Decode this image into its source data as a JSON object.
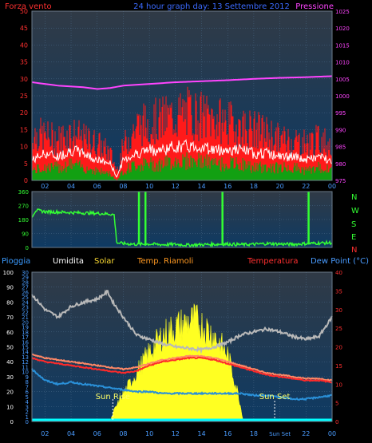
{
  "colors": {
    "background": "#000000",
    "plot_top": "#303a46",
    "plot_bottom": "#0e3a63",
    "grid": "#4a6a8a",
    "wind_gust": "#ff1a1a",
    "wind_avg": "#ffffff",
    "wind_min": "#12a012",
    "pressure": "#ff44ff",
    "direction": "#33ff33",
    "humidity": "#b8b8b8",
    "solar": "#ffff22",
    "temp": "#ff2a2a",
    "temp_max": "#ff8866",
    "dewpoint": "#2a90d8",
    "rain": "#00ffff",
    "title_blue": "#3b6bff",
    "axis_blue": "#4a9cff",
    "axis_red": "#ff3030",
    "axis_yellow": "#ffdd33",
    "axis_orange": "#ff9922",
    "axis_white": "#ffffff"
  },
  "header": {
    "wind_label": "Forza vento",
    "title": "24 hour graph day: 13 Settembre 2012",
    "pressure_label": "Pressione"
  },
  "bottom_legend": {
    "rain": "Pioggia",
    "humidity": "Umidita",
    "solar": "Solar",
    "temp_riamoli": "Temp. Riamoli",
    "temperature": "Temperatura",
    "dewpoint": "Dew Point (°C)"
  },
  "annotations": {
    "sunrise": "Sun Rise",
    "sunset": "Sun Set"
  },
  "compass": [
    "N",
    "W",
    "S",
    "E",
    "N"
  ],
  "chart_data": [
    {
      "type": "line",
      "name": "wind-pressure",
      "xlim": [
        1,
        24
      ],
      "x_ticks": [
        "02",
        "04",
        "06",
        "08",
        "10",
        "12",
        "14",
        "16",
        "18",
        "20",
        "22",
        "00"
      ],
      "y_left_ticks": [
        0,
        5,
        10,
        15,
        20,
        25,
        30,
        35,
        40,
        45,
        50
      ],
      "y_left_lim": [
        0,
        50
      ],
      "y_right_ticks": [
        975,
        980,
        985,
        990,
        995,
        1000,
        1005,
        1010,
        1015,
        1020,
        1025
      ],
      "y_right_lim": [
        975,
        1025
      ],
      "grid": true,
      "series": [
        {
          "name": "Pressione",
          "axis": "right",
          "x": [
            1,
            3,
            5,
            6,
            7,
            8,
            10,
            12,
            14,
            16,
            18,
            20,
            22,
            24
          ],
          "values": [
            1004,
            1003,
            1002.5,
            1002,
            1002.3,
            1003,
            1003.5,
            1004,
            1004.3,
            1004.6,
            1005,
            1005.3,
            1005.5,
            1005.8
          ]
        },
        {
          "axis": "left",
          "role": "gust",
          "x": [
            1,
            2,
            3,
            4,
            5,
            6,
            7,
            7.5,
            8,
            9,
            10,
            11,
            12,
            13,
            14,
            15,
            16,
            17,
            18,
            19,
            20,
            21,
            22,
            23,
            24
          ],
          "values": [
            14,
            13,
            12,
            14,
            12,
            11,
            8,
            3,
            10,
            16,
            17,
            18,
            19,
            20,
            19,
            18,
            17,
            16,
            15,
            14,
            12,
            12,
            11,
            12,
            11
          ]
        },
        {
          "axis": "left",
          "role": "average",
          "x": [
            1,
            2,
            3,
            4,
            5,
            6,
            7,
            7.5,
            8,
            9,
            10,
            11,
            12,
            13,
            14,
            15,
            16,
            17,
            18,
            19,
            20,
            21,
            22,
            23,
            24
          ],
          "values": [
            6,
            8,
            7,
            9,
            8,
            6,
            5,
            1,
            6,
            8,
            9,
            9,
            10,
            10,
            10,
            9,
            9,
            9,
            8,
            8,
            7,
            7,
            6,
            7,
            6
          ]
        },
        {
          "axis": "left",
          "role": "minimum",
          "x": [
            1,
            2,
            3,
            4,
            5,
            6,
            7,
            7.5,
            8,
            9,
            10,
            11,
            12,
            13,
            14,
            15,
            16,
            17,
            18,
            19,
            20,
            21,
            22,
            23,
            24
          ],
          "values": [
            3,
            4,
            4,
            5,
            4,
            3,
            2,
            0,
            3,
            5,
            5,
            5,
            6,
            6,
            6,
            5,
            5,
            5,
            4,
            4,
            4,
            4,
            3,
            4,
            3
          ]
        }
      ]
    },
    {
      "type": "line",
      "name": "wind-direction",
      "xlim": [
        1,
        24
      ],
      "y_ticks": [
        0,
        90,
        180,
        270,
        360
      ],
      "y_lim": [
        0,
        360
      ],
      "series": [
        {
          "axis": "left",
          "x": [
            1,
            1.3,
            2,
            3,
            4,
            5,
            6,
            7,
            7.3,
            7.5,
            8,
            9,
            10,
            11,
            12,
            13,
            14,
            15,
            16,
            17,
            18,
            19,
            20,
            21,
            22,
            23,
            24
          ],
          "values": [
            200,
            240,
            230,
            228,
            225,
            222,
            220,
            215,
            210,
            30,
            25,
            20,
            22,
            18,
            20,
            15,
            18,
            20,
            22,
            18,
            20,
            25,
            22,
            20,
            25,
            28,
            30
          ]
        },
        {
          "role": "spikes",
          "x": [
            9.2,
            9.7,
            15.6,
            22.2
          ],
          "values": [
            360,
            360,
            360,
            360
          ]
        }
      ]
    },
    {
      "type": "line",
      "name": "temperature-humidity-solar",
      "xlim": [
        1,
        24
      ],
      "x_ticks": [
        "02",
        "04",
        "06",
        "08",
        "10",
        "12",
        "14",
        "16",
        "18",
        "Sun Set",
        "22",
        "00"
      ],
      "y_rain_ticks": [
        0,
        10,
        20,
        30,
        40,
        50,
        60,
        70,
        80,
        90,
        100
      ],
      "y_humidity_ticks": [
        0,
        1,
        2,
        3,
        4,
        5,
        6,
        7,
        8,
        9,
        10,
        11,
        12,
        13,
        14,
        15,
        16,
        17,
        18,
        19,
        20,
        21,
        22,
        23,
        24,
        25,
        26,
        27,
        28,
        29,
        30
      ],
      "y_temp_ticks": [
        0,
        5,
        10,
        15,
        20,
        25,
        30,
        35,
        40
      ],
      "y_temp_lim": [
        0,
        40
      ],
      "grid": true,
      "series": [
        {
          "name": "Umidita",
          "axis": "rain",
          "x": [
            1,
            2,
            3,
            4,
            5,
            6,
            6.8,
            7.2,
            8,
            9,
            10,
            11,
            12,
            13,
            14,
            15,
            16,
            17,
            18,
            19,
            20,
            21,
            22,
            23,
            24
          ],
          "values": [
            85,
            75,
            70,
            77,
            80,
            82,
            87,
            80,
            70,
            58,
            55,
            52,
            50,
            49,
            48,
            50,
            53,
            58,
            60,
            62,
            60,
            57,
            55,
            57,
            70
          ]
        },
        {
          "name": "Temperatura",
          "axis": "temp",
          "x": [
            1,
            2,
            3,
            4,
            5,
            6,
            7,
            8,
            9,
            10,
            11,
            12,
            13,
            14,
            15,
            16,
            17,
            18,
            19,
            20,
            21,
            22,
            23,
            24
          ],
          "values": [
            17,
            16,
            15.5,
            15,
            14.5,
            14,
            13.5,
            13,
            13.5,
            15,
            16,
            16.5,
            17,
            17,
            16.5,
            15.5,
            14.5,
            13.5,
            12.5,
            12,
            11.5,
            11,
            11,
            10.5
          ]
        },
        {
          "name": "Temp. Riamoli",
          "axis": "temp",
          "x": [
            1,
            2,
            3,
            4,
            5,
            6,
            7,
            8,
            9,
            10,
            11,
            12,
            13,
            14,
            15,
            16,
            17,
            18,
            19,
            20,
            21,
            22,
            23,
            24
          ],
          "values": [
            18,
            17,
            16.5,
            16,
            15.5,
            15,
            14.5,
            14,
            14.5,
            15.5,
            16.5,
            17,
            17.5,
            17.5,
            17,
            16,
            15,
            14,
            13,
            12.5,
            12,
            11.5,
            11.5,
            11
          ]
        },
        {
          "name": "Dew Point (°C)",
          "axis": "temp",
          "x": [
            1,
            2,
            3,
            4,
            5,
            6,
            7,
            8,
            9,
            10,
            11,
            12,
            13,
            14,
            15,
            16,
            17,
            18,
            19,
            20,
            21,
            22,
            23,
            24
          ],
          "values": [
            14,
            11,
            10,
            10.5,
            10,
            9.5,
            9,
            8.5,
            8,
            8,
            7.5,
            7.5,
            7.5,
            7.5,
            7.5,
            7.5,
            7.5,
            7,
            7,
            6.5,
            6,
            6,
            6.5,
            7
          ]
        },
        {
          "name": "Solar",
          "axis": "rain",
          "x": [
            1,
            7,
            7.3,
            8,
            9,
            10,
            11,
            12,
            13,
            13.5,
            14,
            15,
            16,
            16.8,
            17.2,
            24
          ],
          "values": [
            0,
            0,
            8,
            20,
            35,
            50,
            62,
            68,
            72,
            73,
            70,
            62,
            48,
            20,
            0,
            0
          ]
        },
        {
          "name": "Pioggia",
          "axis": "rain",
          "x": [
            1,
            24
          ],
          "values": [
            0,
            0
          ]
        }
      ]
    }
  ]
}
